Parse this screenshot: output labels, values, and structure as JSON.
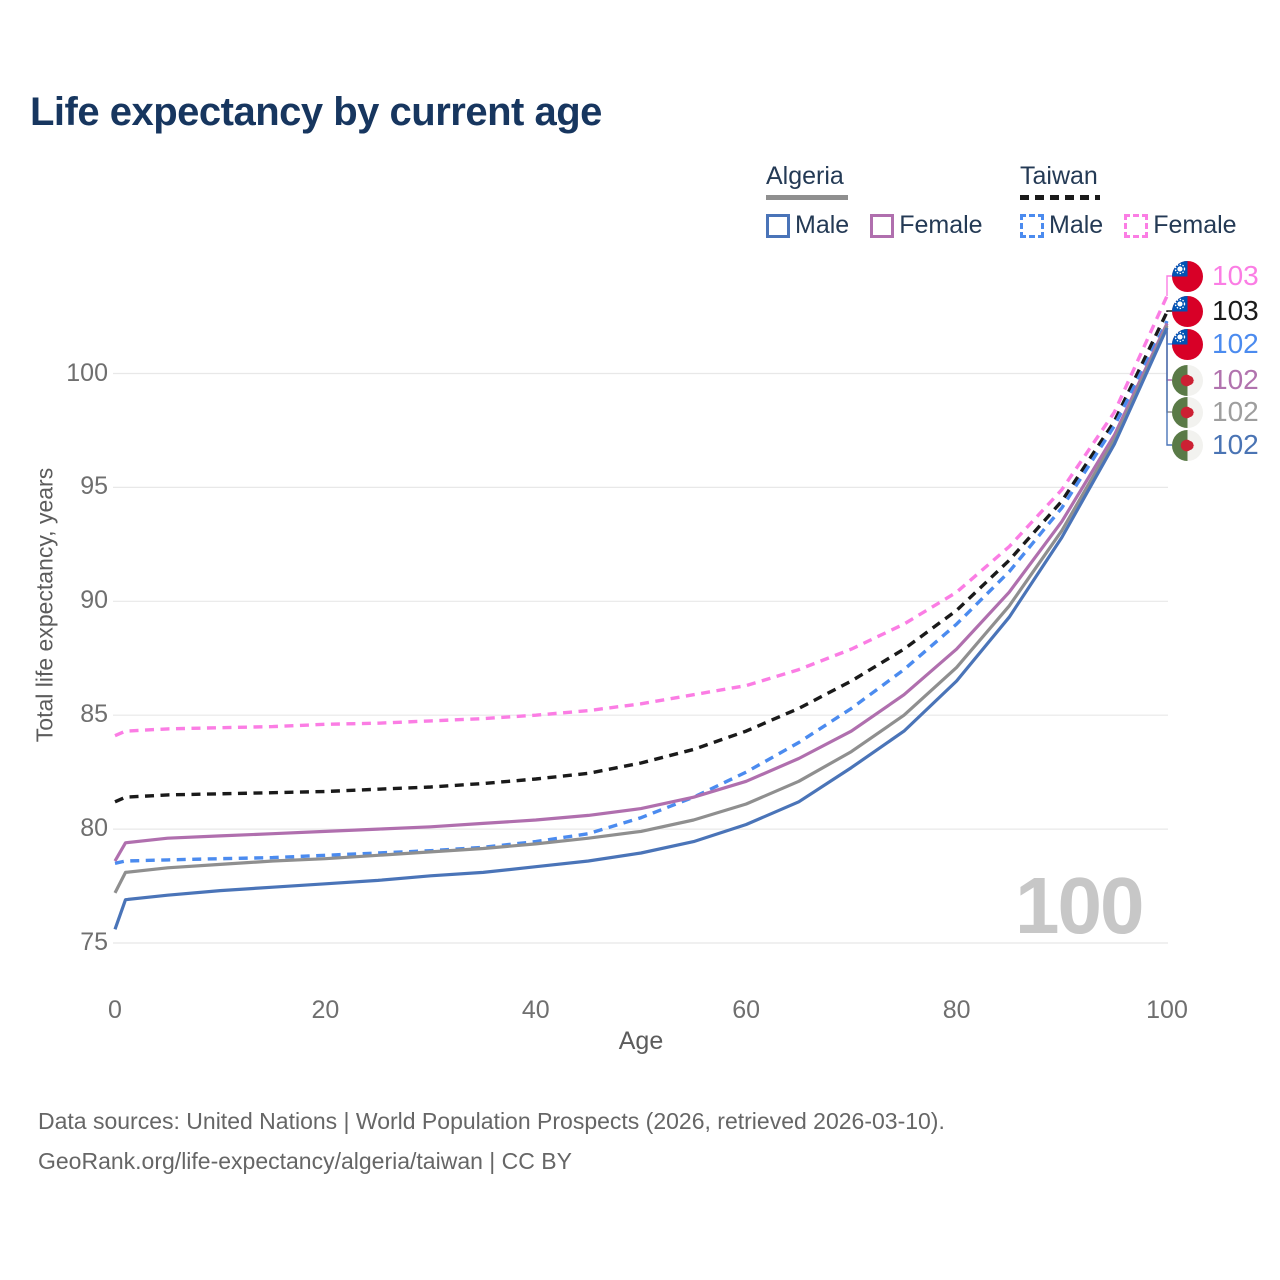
{
  "title": "Life expectancy by current age",
  "legend": {
    "algeria": {
      "label": "Algeria",
      "male": "Male",
      "female": "Female"
    },
    "taiwan": {
      "label": "Taiwan",
      "male": "Male",
      "female": "Female"
    }
  },
  "axes": {
    "y_title": "Total life expectancy, years",
    "x_title": "Age",
    "y_ticks": [
      "75",
      "80",
      "85",
      "90",
      "95",
      "100"
    ],
    "x_ticks": [
      "0",
      "20",
      "40",
      "60",
      "80",
      "100"
    ]
  },
  "age_indicator": "100",
  "end_labels": [
    {
      "country": "Taiwan",
      "series": "taiwan_female",
      "value": "103",
      "color": "#fb7de4"
    },
    {
      "country": "Taiwan",
      "series": "taiwan_both",
      "value": "103",
      "color": "#1a1a1a"
    },
    {
      "country": "Taiwan",
      "series": "taiwan_male",
      "value": "102",
      "color": "#4b8bef"
    },
    {
      "country": "Algeria",
      "series": "algeria_female",
      "value": "102",
      "color": "#b173ae"
    },
    {
      "country": "Algeria",
      "series": "algeria_both",
      "value": "102",
      "color": "#9e9e9e"
    },
    {
      "country": "Algeria",
      "series": "algeria_male",
      "value": "102",
      "color": "#4a74b4"
    }
  ],
  "footer": {
    "line1": "Data sources: United Nations | World Population Prospects (2026, retrieved 2026-03-10).",
    "line2": "GeoRank.org/life-expectancy/algeria/taiwan | CC BY"
  },
  "chart_data": {
    "type": "line",
    "title": "Life expectancy by current age",
    "xlabel": "Age",
    "ylabel": "Total life expectancy, years",
    "xlim": [
      0,
      100
    ],
    "ylim": [
      75,
      104
    ],
    "grid": "horizontal",
    "legend_position": "top-right",
    "ages": [
      0,
      1,
      5,
      10,
      15,
      20,
      25,
      30,
      35,
      40,
      45,
      50,
      55,
      60,
      65,
      70,
      75,
      80,
      85,
      90,
      95,
      100
    ],
    "series": [
      {
        "name": "Taiwan Female",
        "key": "taiwan_female",
        "color": "#fb7de4",
        "dash": true,
        "width": 3.4,
        "values": [
          84.1,
          84.3,
          84.4,
          84.45,
          84.5,
          84.6,
          84.65,
          84.75,
          84.85,
          85.0,
          85.2,
          85.5,
          85.9,
          86.3,
          87.0,
          87.9,
          89.0,
          90.4,
          92.4,
          94.9,
          98.3,
          103.4
        ]
      },
      {
        "name": "Taiwan Both sexes",
        "key": "taiwan_both",
        "color": "#1a1a1a",
        "dash": true,
        "width": 3.4,
        "values": [
          81.2,
          81.4,
          81.5,
          81.55,
          81.6,
          81.65,
          81.75,
          81.85,
          82.0,
          82.2,
          82.45,
          82.9,
          83.5,
          84.3,
          85.3,
          86.5,
          87.9,
          89.6,
          91.8,
          94.4,
          97.9,
          102.7
        ]
      },
      {
        "name": "Taiwan Male",
        "key": "taiwan_male",
        "color": "#4b8bef",
        "dash": true,
        "width": 3.4,
        "values": [
          78.5,
          78.6,
          78.65,
          78.7,
          78.75,
          78.85,
          78.95,
          79.05,
          79.2,
          79.45,
          79.8,
          80.5,
          81.4,
          82.5,
          83.8,
          85.3,
          87.0,
          89.0,
          91.3,
          94.1,
          97.7,
          102.3
        ]
      },
      {
        "name": "Algeria Female",
        "key": "algeria_female",
        "color": "#b06fae",
        "dash": false,
        "width": 3.2,
        "values": [
          78.6,
          79.4,
          79.6,
          79.7,
          79.8,
          79.9,
          80.0,
          80.1,
          80.25,
          80.4,
          80.6,
          80.9,
          81.4,
          82.1,
          83.1,
          84.3,
          85.9,
          87.9,
          90.4,
          93.5,
          97.3,
          102.2
        ]
      },
      {
        "name": "Algeria Both sexes",
        "key": "algeria_both",
        "color": "#8f8f8f",
        "dash": false,
        "width": 3.2,
        "values": [
          77.2,
          78.1,
          78.3,
          78.45,
          78.6,
          78.7,
          78.85,
          79.0,
          79.15,
          79.35,
          79.6,
          79.9,
          80.4,
          81.1,
          82.1,
          83.4,
          85.0,
          87.1,
          89.8,
          93.1,
          97.1,
          102.1
        ]
      },
      {
        "name": "Algeria Male",
        "key": "algeria_male",
        "color": "#4a74b8",
        "dash": false,
        "width": 3.2,
        "values": [
          75.6,
          76.9,
          77.1,
          77.3,
          77.45,
          77.6,
          77.75,
          77.95,
          78.1,
          78.35,
          78.6,
          78.95,
          79.45,
          80.2,
          81.2,
          82.7,
          84.3,
          86.5,
          89.3,
          92.8,
          96.9,
          102.0
        ]
      }
    ]
  }
}
